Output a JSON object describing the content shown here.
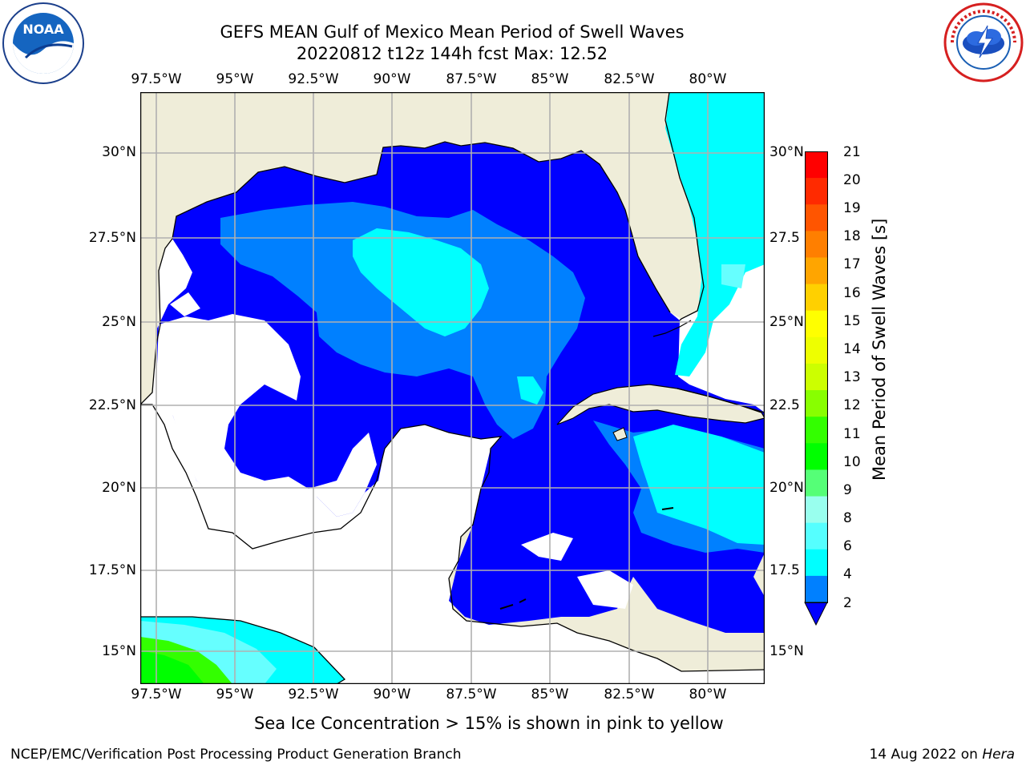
{
  "title": {
    "line1": "GEFS MEAN Gulf of Mexico Mean Period of Swell Waves",
    "line2": "20220812 t12z 144h fcst   Max: 12.52"
  },
  "logos": {
    "left": "NOAA",
    "left_ring": "NATIONAL OCEANIC AND ATMOSPHERIC ADMINISTRATION · U.S. DEPARTMENT OF COMMERCE",
    "right_ring": "NATIONAL WEATHER SERVICE"
  },
  "map": {
    "lon_labels": [
      "97.5°W",
      "95°W",
      "92.5°W",
      "90°W",
      "87.5°W",
      "85°W",
      "82.5°W",
      "80°W"
    ],
    "lat_labels_left": [
      "30°N",
      "27.5°N",
      "25°N",
      "22.5°N",
      "20°N",
      "17.5°N",
      "15°N"
    ],
    "lat_labels_right": [
      "30°N",
      "27.5",
      "25°N",
      "22.5",
      "20°N",
      "17.5",
      "15°N"
    ],
    "lon_range": [
      -98,
      -78
    ],
    "lat_range": [
      14,
      32
    ],
    "colors": {
      "land": "#efedd9",
      "coast": "#000000",
      "grid": "#b0b0b0",
      "swell_2_4": "#0000ff",
      "swell_4_6": "#0080ff",
      "swell_6_8": "#00ffff",
      "swell_8_9": "#66ffff",
      "swell_10_12": "#33ff00",
      "no_data": "#ffffff"
    }
  },
  "colorbar": {
    "label": "Mean Period of Swell Waves [s]",
    "ticks": [
      "21",
      "20",
      "19",
      "18",
      "17",
      "16",
      "15",
      "14",
      "13",
      "12",
      "11",
      "10",
      "9",
      "8",
      "6",
      "4",
      "2"
    ],
    "colors": [
      "#ff0000",
      "#ff2a00",
      "#ff5500",
      "#ff7f00",
      "#ffa500",
      "#ffd000",
      "#ffff00",
      "#eeff00",
      "#ccff00",
      "#88ff00",
      "#33ff00",
      "#00ff00",
      "#55ff77",
      "#99ffee",
      "#55ffff",
      "#00ffff",
      "#0080ff"
    ],
    "extend_color": "#0000ff"
  },
  "note": "Sea Ice Concentration > 15% is shown in pink to yellow",
  "footer": {
    "left": "NCEP/EMC/Verification Post Processing Product Generation Branch",
    "right_prefix": "14 Aug 2022 on ",
    "right_host": "Hera"
  }
}
